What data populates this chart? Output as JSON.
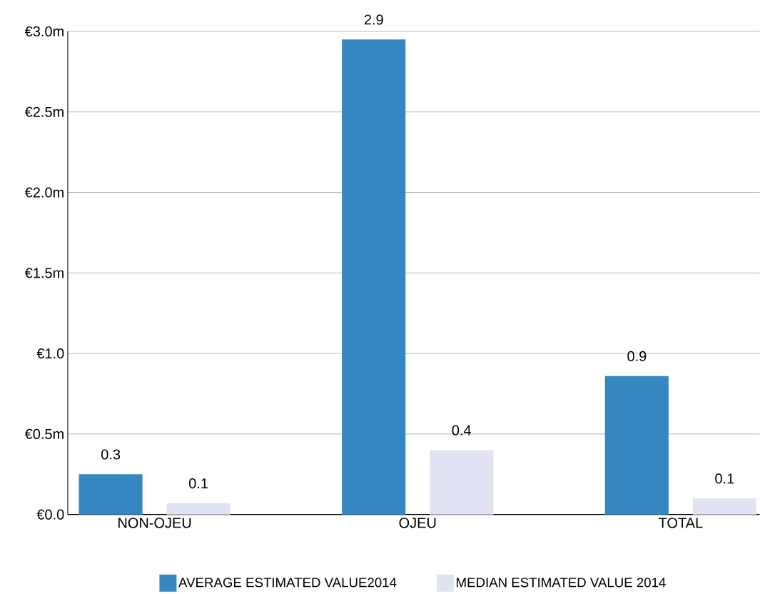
{
  "chart_data": {
    "type": "bar",
    "categories": [
      "NON-OJEU",
      "OJEU",
      "TOTAL"
    ],
    "series": [
      {
        "name": "AVERAGE ESTIMATED VALUE2014",
        "color": "#3587c2",
        "values": [
          0.25,
          2.95,
          0.86
        ],
        "value_labels": [
          "0.3",
          "2.9",
          "0.9"
        ]
      },
      {
        "name": "MEDIAN ESTIMATED VALUE 2014",
        "color": "#e0e3f2",
        "values": [
          0.07,
          0.4,
          0.1
        ],
        "value_labels": [
          "0.1",
          "0.4",
          "0.1"
        ]
      }
    ],
    "ylim": [
      0,
      3.0
    ],
    "yticks": [
      {
        "value": 0,
        "label": "€0.0"
      },
      {
        "value": 0.5,
        "label": "€0.5m"
      },
      {
        "value": 1.0,
        "label": "€1.0"
      },
      {
        "value": 1.5,
        "label": "€1.5m"
      },
      {
        "value": 2.0,
        "label": "€2.0m"
      },
      {
        "value": 2.5,
        "label": "€2.5m"
      },
      {
        "value": 3.0,
        "label": "€3.0m"
      }
    ],
    "grid": "y",
    "legend": "bottom"
  }
}
